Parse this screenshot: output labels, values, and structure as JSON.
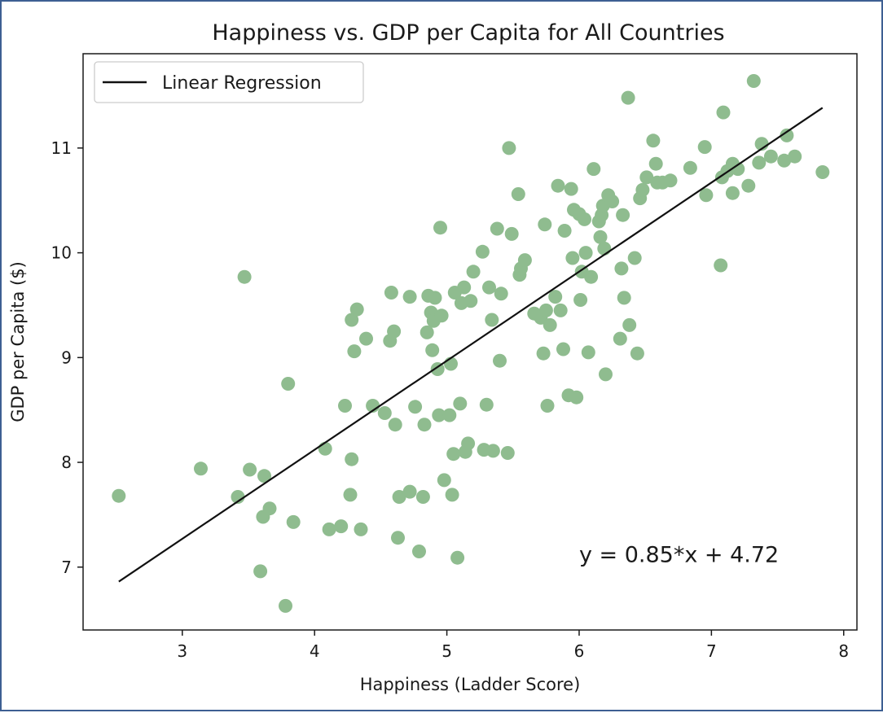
{
  "chart_data": {
    "type": "scatter",
    "title": "Happiness vs. GDP per Capita for All Countries",
    "xlabel": "Happiness (Ladder Score)",
    "ylabel": "GDP per Capita ($)",
    "xlim": [
      2.25,
      8.1
    ],
    "ylim": [
      6.4,
      11.9
    ],
    "xticks": [
      3,
      4,
      5,
      6,
      7,
      8
    ],
    "yticks": [
      7,
      8,
      9,
      10,
      11
    ],
    "grid": false,
    "legend": {
      "position": "top-left",
      "entries": [
        "Linear Regression"
      ]
    },
    "colors": {
      "points": "#8fbc8f",
      "line": "#111111"
    },
    "series": [
      {
        "kind": "scatter",
        "points": [
          [
            2.52,
            7.68
          ],
          [
            3.14,
            7.94
          ],
          [
            3.42,
            7.67
          ],
          [
            3.47,
            9.77
          ],
          [
            3.51,
            7.93
          ],
          [
            3.59,
            6.96
          ],
          [
            3.61,
            7.48
          ],
          [
            3.62,
            7.87
          ],
          [
            3.66,
            7.56
          ],
          [
            3.78,
            6.63
          ],
          [
            3.8,
            8.75
          ],
          [
            3.84,
            7.43
          ],
          [
            4.08,
            8.13
          ],
          [
            4.11,
            7.36
          ],
          [
            4.2,
            7.39
          ],
          [
            4.23,
            8.54
          ],
          [
            4.27,
            7.69
          ],
          [
            4.28,
            8.03
          ],
          [
            4.28,
            9.36
          ],
          [
            4.3,
            9.06
          ],
          [
            4.32,
            9.46
          ],
          [
            4.35,
            7.36
          ],
          [
            4.39,
            9.18
          ],
          [
            4.44,
            8.54
          ],
          [
            4.53,
            8.47
          ],
          [
            4.57,
            9.16
          ],
          [
            4.58,
            9.62
          ],
          [
            4.6,
            9.25
          ],
          [
            4.61,
            8.36
          ],
          [
            4.63,
            7.28
          ],
          [
            4.64,
            7.67
          ],
          [
            4.72,
            7.72
          ],
          [
            4.72,
            9.58
          ],
          [
            4.76,
            8.53
          ],
          [
            4.79,
            7.15
          ],
          [
            4.82,
            7.67
          ],
          [
            4.83,
            8.36
          ],
          [
            4.85,
            9.24
          ],
          [
            4.86,
            9.59
          ],
          [
            4.88,
            9.43
          ],
          [
            4.89,
            9.07
          ],
          [
            4.9,
            9.35
          ],
          [
            4.91,
            9.57
          ],
          [
            4.93,
            8.89
          ],
          [
            4.94,
            8.45
          ],
          [
            4.95,
            10.24
          ],
          [
            4.96,
            9.4
          ],
          [
            4.98,
            7.83
          ],
          [
            5.02,
            8.45
          ],
          [
            5.03,
            8.94
          ],
          [
            5.04,
            7.69
          ],
          [
            5.05,
            8.08
          ],
          [
            5.06,
            9.62
          ],
          [
            5.08,
            7.09
          ],
          [
            5.1,
            8.56
          ],
          [
            5.11,
            9.52
          ],
          [
            5.13,
            9.67
          ],
          [
            5.14,
            8.1
          ],
          [
            5.16,
            8.18
          ],
          [
            5.18,
            9.54
          ],
          [
            5.2,
            9.82
          ],
          [
            5.27,
            10.01
          ],
          [
            5.28,
            8.12
          ],
          [
            5.3,
            8.55
          ],
          [
            5.32,
            9.67
          ],
          [
            5.34,
            9.36
          ],
          [
            5.35,
            8.11
          ],
          [
            5.38,
            10.23
          ],
          [
            5.4,
            8.97
          ],
          [
            5.41,
            9.61
          ],
          [
            5.46,
            8.09
          ],
          [
            5.47,
            11.0
          ],
          [
            5.49,
            10.18
          ],
          [
            5.54,
            10.56
          ],
          [
            5.55,
            9.79
          ],
          [
            5.56,
            9.85
          ],
          [
            5.59,
            9.93
          ],
          [
            5.66,
            9.42
          ],
          [
            5.71,
            9.38
          ],
          [
            5.73,
            9.04
          ],
          [
            5.74,
            10.27
          ],
          [
            5.75,
            9.45
          ],
          [
            5.76,
            8.54
          ],
          [
            5.78,
            9.31
          ],
          [
            5.82,
            9.58
          ],
          [
            5.84,
            10.64
          ],
          [
            5.86,
            9.45
          ],
          [
            5.88,
            9.08
          ],
          [
            5.89,
            10.21
          ],
          [
            5.92,
            8.64
          ],
          [
            5.94,
            10.61
          ],
          [
            5.95,
            9.95
          ],
          [
            5.96,
            10.41
          ],
          [
            5.98,
            8.62
          ],
          [
            6.0,
            10.37
          ],
          [
            6.01,
            9.55
          ],
          [
            6.02,
            9.82
          ],
          [
            6.04,
            10.32
          ],
          [
            6.05,
            10.0
          ],
          [
            6.07,
            9.05
          ],
          [
            6.09,
            9.77
          ],
          [
            6.11,
            10.8
          ],
          [
            6.15,
            10.3
          ],
          [
            6.16,
            10.15
          ],
          [
            6.17,
            10.36
          ],
          [
            6.18,
            10.45
          ],
          [
            6.19,
            10.04
          ],
          [
            6.2,
            8.84
          ],
          [
            6.22,
            10.55
          ],
          [
            6.25,
            10.49
          ],
          [
            6.31,
            9.18
          ],
          [
            6.32,
            9.85
          ],
          [
            6.33,
            10.36
          ],
          [
            6.34,
            9.57
          ],
          [
            6.37,
            11.48
          ],
          [
            6.38,
            9.31
          ],
          [
            6.42,
            9.95
          ],
          [
            6.44,
            9.04
          ],
          [
            6.46,
            10.52
          ],
          [
            6.48,
            10.6
          ],
          [
            6.51,
            10.72
          ],
          [
            6.56,
            11.07
          ],
          [
            6.58,
            10.85
          ],
          [
            6.59,
            10.67
          ],
          [
            6.63,
            10.67
          ],
          [
            6.69,
            10.69
          ],
          [
            6.84,
            10.81
          ],
          [
            6.95,
            11.01
          ],
          [
            6.96,
            10.55
          ],
          [
            7.07,
            9.88
          ],
          [
            7.08,
            10.72
          ],
          [
            7.09,
            11.34
          ],
          [
            7.12,
            10.78
          ],
          [
            7.16,
            10.57
          ],
          [
            7.16,
            10.85
          ],
          [
            7.2,
            10.8
          ],
          [
            7.28,
            10.64
          ],
          [
            7.32,
            11.64
          ],
          [
            7.36,
            10.86
          ],
          [
            7.38,
            11.04
          ],
          [
            7.45,
            10.92
          ],
          [
            7.55,
            10.88
          ],
          [
            7.57,
            11.12
          ],
          [
            7.63,
            10.92
          ],
          [
            7.84,
            10.77
          ]
        ]
      },
      {
        "kind": "line",
        "name": "Linear Regression",
        "slope": 0.85,
        "intercept": 4.72,
        "x_range": [
          2.52,
          7.84
        ]
      }
    ],
    "annotations": [
      {
        "text": "y = 0.85*x + 4.72",
        "x": 6.0,
        "y": 7.05
      }
    ]
  }
}
